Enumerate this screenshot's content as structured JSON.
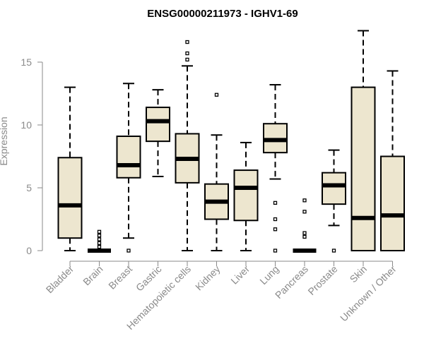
{
  "chart_data": {
    "type": "boxplot",
    "title": "ENSG00000211973 - IGHV1-69",
    "xlabel": "",
    "ylabel": "Expression",
    "ylim": [
      0,
      17.5
    ],
    "yticks": [
      0,
      5,
      10,
      15
    ],
    "grid": false,
    "legend": "none",
    "style": {
      "box_fill": "#ede6cf",
      "box_stroke": "#000000",
      "median_stroke": "#000000",
      "whisker_stroke": "#000000",
      "axis_color": "#8a8a8a",
      "outlier_stroke": "#000000"
    },
    "categories": [
      "Bladder",
      "Brain",
      "Breast",
      "Gastric",
      "Hematopoietic cells",
      "Kidney",
      "Liver",
      "Lung",
      "Pancreas",
      "Prostate",
      "Skin",
      "Unknown / Other"
    ],
    "boxes": [
      {
        "category": "Bladder",
        "min": 0.0,
        "q1": 1.0,
        "median": 3.6,
        "q3": 7.4,
        "max": 13.0,
        "outliers": []
      },
      {
        "category": "Brain",
        "min": 0.0,
        "q1": 0.0,
        "median": 0.0,
        "q3": 0.0,
        "max": 0.0,
        "outliers": [
          1.5,
          1.2,
          0.9,
          0.6,
          0.3
        ]
      },
      {
        "category": "Breast",
        "min": 1.0,
        "q1": 5.8,
        "median": 6.8,
        "q3": 9.1,
        "max": 13.3,
        "outliers": [
          0.0
        ]
      },
      {
        "category": "Gastric",
        "min": 5.9,
        "q1": 8.7,
        "median": 10.3,
        "q3": 11.4,
        "max": 12.8,
        "outliers": []
      },
      {
        "category": "Hematopoietic cells",
        "min": 0.0,
        "q1": 5.4,
        "median": 7.3,
        "q3": 9.3,
        "max": 14.7,
        "outliers": [
          15.2,
          15.7,
          16.6
        ]
      },
      {
        "category": "Kidney",
        "min": 0.0,
        "q1": 2.5,
        "median": 3.9,
        "q3": 5.3,
        "max": 9.2,
        "outliers": [
          12.4
        ]
      },
      {
        "category": "Liver",
        "min": 0.0,
        "q1": 2.4,
        "median": 5.0,
        "q3": 6.4,
        "max": 8.6,
        "outliers": []
      },
      {
        "category": "Lung",
        "min": 5.7,
        "q1": 7.8,
        "median": 8.8,
        "q3": 10.1,
        "max": 13.2,
        "outliers": [
          3.8,
          2.5,
          1.7,
          0.0
        ]
      },
      {
        "category": "Pancreas",
        "min": 0.0,
        "q1": 0.0,
        "median": 0.0,
        "q3": 0.0,
        "max": 0.0,
        "outliers": [
          4.0,
          3.1,
          1.4,
          1.1
        ]
      },
      {
        "category": "Prostate",
        "min": 2.0,
        "q1": 3.7,
        "median": 5.2,
        "q3": 6.2,
        "max": 8.0,
        "outliers": [
          0.0
        ]
      },
      {
        "category": "Skin",
        "min": 0.0,
        "q1": 0.0,
        "median": 2.6,
        "q3": 13.0,
        "max": 17.5,
        "outliers": []
      },
      {
        "category": "Unknown / Other",
        "min": 0.0,
        "q1": 0.0,
        "median": 2.8,
        "q3": 7.5,
        "max": 14.3,
        "outliers": []
      }
    ]
  }
}
